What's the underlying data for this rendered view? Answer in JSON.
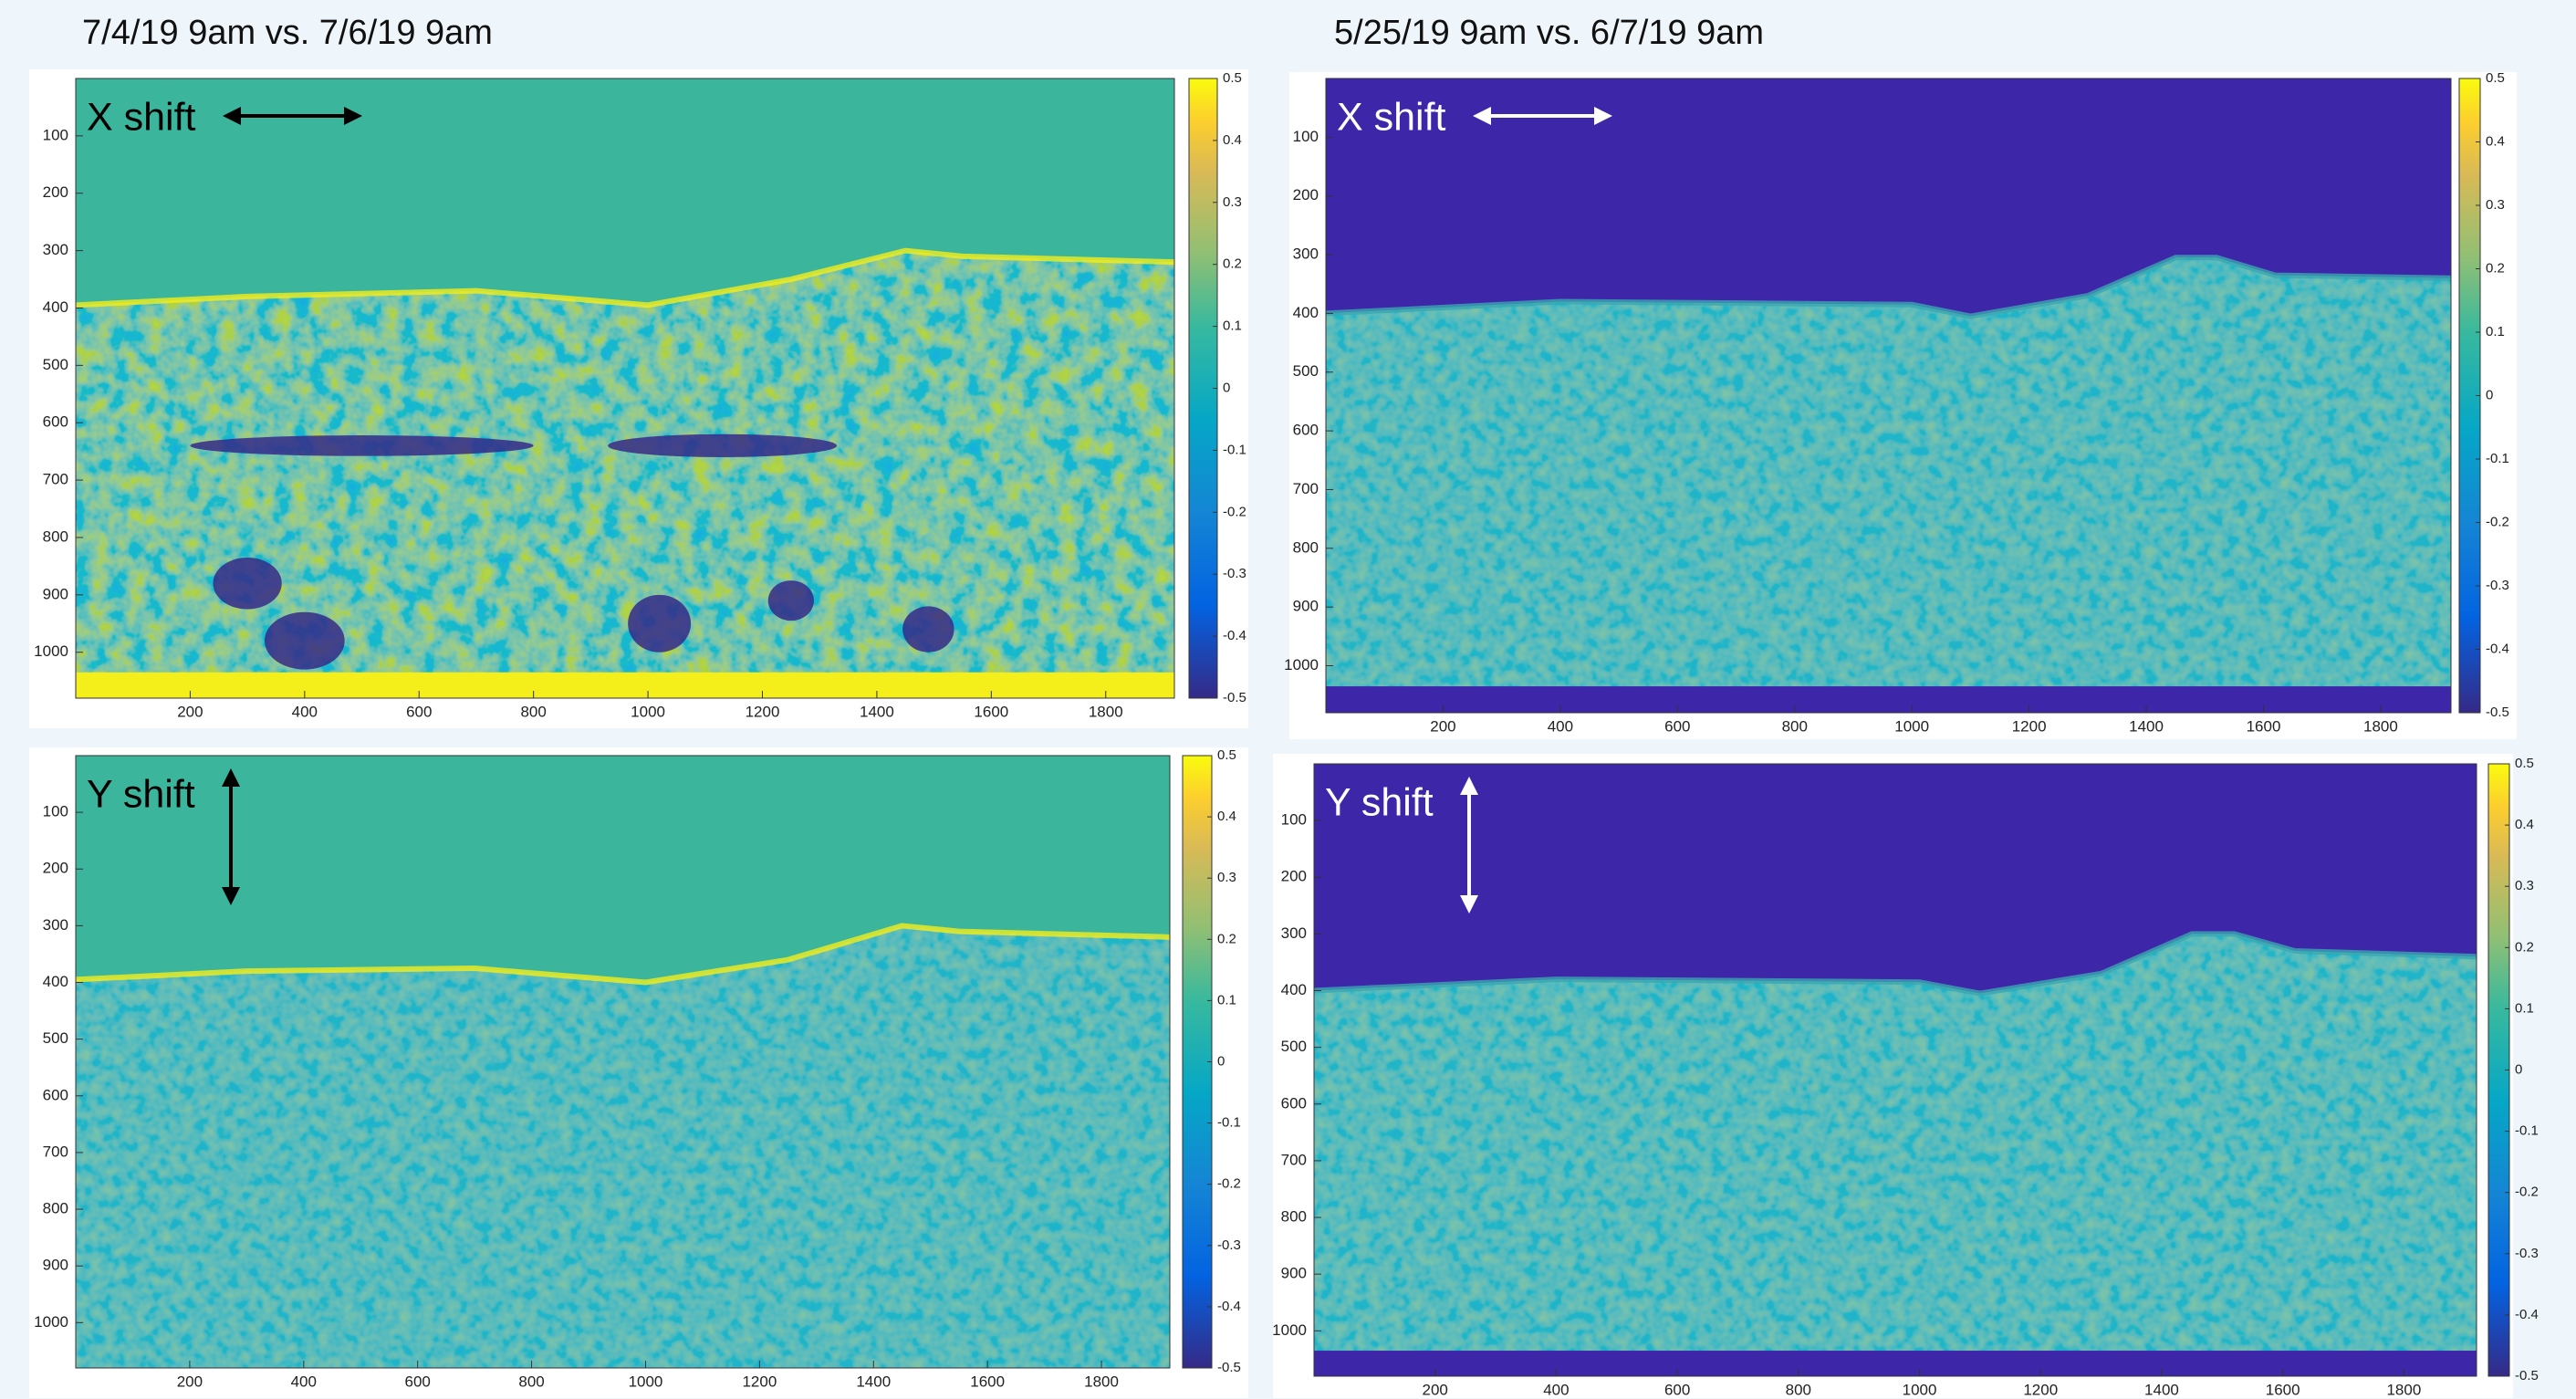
{
  "headings": [
    "7/4/19 9am vs. 7/6/19 9am",
    "5/25/19 9am vs. 6/7/19 9am"
  ],
  "chart_data": [
    {
      "type": "heatmap",
      "label": "X shift",
      "label_color": "#000000",
      "xlim": [
        0,
        1920
      ],
      "xticks": [
        200,
        400,
        600,
        800,
        1000,
        1200,
        1400,
        1600,
        1800
      ],
      "ylim": [
        1080,
        0
      ],
      "yticks": [
        100,
        200,
        300,
        400,
        500,
        600,
        700,
        800,
        900,
        1000
      ],
      "colorbar_lim": [
        -0.5,
        0.5
      ],
      "colorbar_ticks": [
        0.5,
        0.4,
        0.3,
        0.2,
        0.1,
        0,
        -0.1,
        -0.2,
        -0.3,
        -0.4,
        -0.5
      ]
    },
    {
      "type": "heatmap",
      "label": "X shift",
      "label_color": "#ffffff",
      "xlim": [
        0,
        1920
      ],
      "xticks": [
        200,
        400,
        600,
        800,
        1000,
        1200,
        1400,
        1600,
        1800
      ],
      "ylim": [
        1080,
        0
      ],
      "yticks": [
        100,
        200,
        300,
        400,
        500,
        600,
        700,
        800,
        900,
        1000
      ],
      "colorbar_lim": [
        -0.5,
        0.5
      ],
      "colorbar_ticks": [
        0.5,
        0.4,
        0.3,
        0.2,
        0.1,
        0,
        -0.1,
        -0.2,
        -0.3,
        -0.4,
        -0.5
      ]
    },
    {
      "type": "heatmap",
      "label": "Y shift",
      "label_color": "#000000",
      "xlim": [
        0,
        1920
      ],
      "xticks": [
        200,
        400,
        600,
        800,
        1000,
        1200,
        1400,
        1600,
        1800
      ],
      "ylim": [
        1080,
        0
      ],
      "yticks": [
        100,
        200,
        300,
        400,
        500,
        600,
        700,
        800,
        900,
        1000
      ],
      "colorbar_lim": [
        -0.5,
        0.5
      ],
      "colorbar_ticks": [
        0.5,
        0.4,
        0.3,
        0.2,
        0.1,
        0,
        -0.1,
        -0.2,
        -0.3,
        -0.4,
        -0.5
      ]
    },
    {
      "type": "heatmap",
      "label": "Y shift",
      "label_color": "#ffffff",
      "xlim": [
        0,
        1920
      ],
      "xticks": [
        200,
        400,
        600,
        800,
        1000,
        1200,
        1400,
        1600,
        1800
      ],
      "ylim": [
        1080,
        0
      ],
      "yticks": [
        100,
        200,
        300,
        400,
        500,
        600,
        700,
        800,
        900,
        1000
      ],
      "colorbar_lim": [
        -0.5,
        0.5
      ],
      "colorbar_ticks": [
        0.5,
        0.4,
        0.3,
        0.2,
        0.1,
        0,
        -0.1,
        -0.2,
        -0.3,
        -0.4,
        -0.5
      ]
    }
  ]
}
